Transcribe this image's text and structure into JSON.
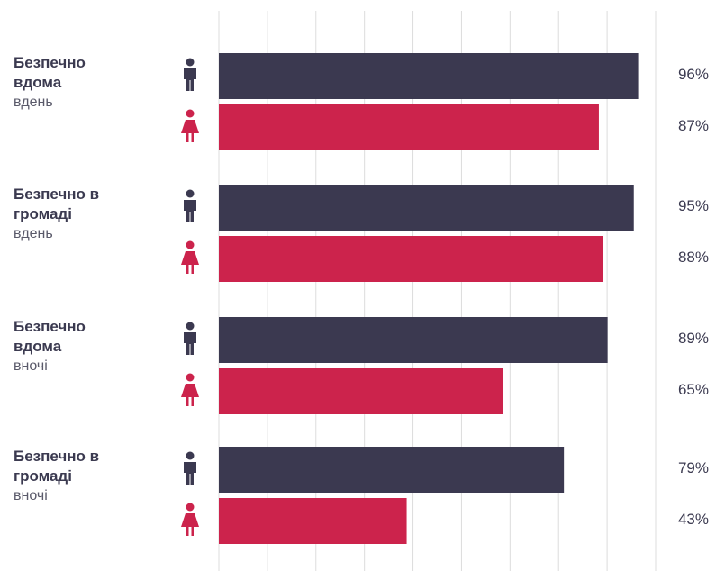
{
  "colors": {
    "men": "#3b3950",
    "women": "#cc234c",
    "grid": "#dcdcdc",
    "text": "#3b3a50"
  },
  "icons": {
    "men": "man-icon",
    "women": "woman-icon"
  },
  "chart_data": {
    "type": "bar",
    "orientation": "horizontal",
    "xlim": [
      0,
      100
    ],
    "grid": true,
    "categories": [
      {
        "title": "Безпечно вдома",
        "sub": "вдень"
      },
      {
        "title": "Безпечно в громаді",
        "sub": "вдень"
      },
      {
        "title": "Безпечно вдома",
        "sub": "вночі"
      },
      {
        "title": "Безпечно в громаді",
        "sub": "вночі"
      }
    ],
    "series": [
      {
        "key": "men",
        "values": [
          96,
          95,
          89,
          79
        ],
        "labels": [
          "96%",
          "95%",
          "89%",
          "79%"
        ]
      },
      {
        "key": "women",
        "values": [
          87,
          88,
          65,
          43
        ],
        "labels": [
          "87%",
          "88%",
          "65%",
          "43%"
        ]
      }
    ]
  }
}
